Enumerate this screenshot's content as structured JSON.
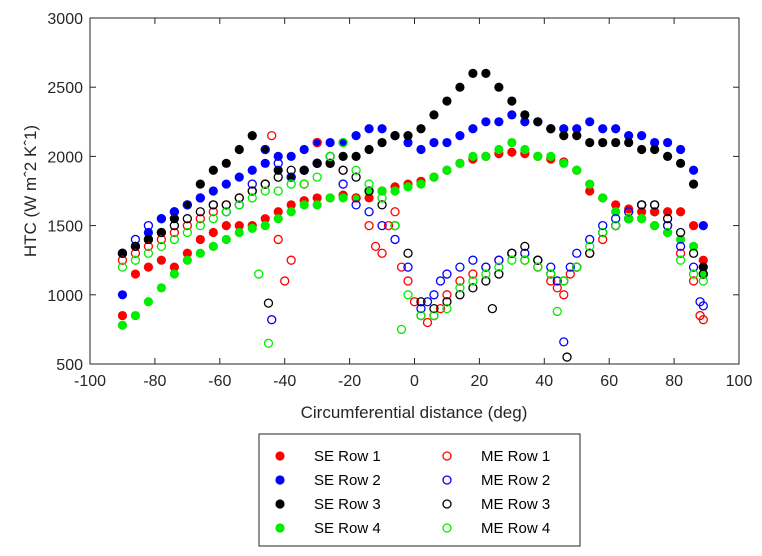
{
  "chart_data": {
    "type": "scatter",
    "title": "",
    "xlabel": "Circumferential distance (deg)",
    "ylabel": "HTC (W m^-2 K^-1)",
    "ylabel_display": "HTC (W mˆ2 Kˆ1)",
    "xlim": [
      -100,
      100
    ],
    "ylim": [
      500,
      3000
    ],
    "x_ticks": [
      -100,
      -80,
      -60,
      -40,
      -20,
      0,
      20,
      40,
      60,
      80,
      100
    ],
    "y_ticks": [
      500,
      1000,
      1500,
      2000,
      2500,
      3000
    ],
    "grid": false,
    "legend_position": "bottom-center",
    "series": [
      {
        "name": "SE Row 1",
        "color": "#ff0000",
        "marker": "filled-circle",
        "x": [
          -90,
          -86,
          -82,
          -78,
          -74,
          -70,
          -66,
          -62,
          -58,
          -54,
          -50,
          -46,
          -42,
          -38,
          -34,
          -30,
          -26,
          -22,
          -18,
          -14,
          -10,
          -6,
          -2,
          2,
          6,
          10,
          14,
          18,
          22,
          26,
          30,
          34,
          38,
          42,
          46,
          50,
          54,
          58,
          62,
          66,
          70,
          74,
          78,
          82,
          86,
          89
        ],
        "y": [
          850,
          1150,
          1200,
          1250,
          1200,
          1300,
          1400,
          1450,
          1500,
          1500,
          1500,
          1550,
          1600,
          1650,
          1680,
          1700,
          1700,
          1720,
          1700,
          1700,
          1750,
          1780,
          1800,
          1820,
          1850,
          1900,
          1950,
          1980,
          2000,
          2020,
          2030,
          2020,
          2000,
          1980,
          1960,
          1900,
          1750,
          1700,
          1650,
          1620,
          1600,
          1600,
          1600,
          1600,
          1500,
          1250
        ]
      },
      {
        "name": "SE Row 2",
        "color": "#0000ff",
        "marker": "filled-circle",
        "x": [
          -90,
          -86,
          -82,
          -78,
          -74,
          -70,
          -66,
          -62,
          -58,
          -54,
          -50,
          -46,
          -42,
          -38,
          -34,
          -30,
          -26,
          -22,
          -18,
          -14,
          -10,
          -6,
          -2,
          2,
          6,
          10,
          14,
          18,
          22,
          26,
          30,
          34,
          38,
          42,
          46,
          50,
          54,
          58,
          62,
          66,
          70,
          74,
          78,
          82,
          86,
          89
        ],
        "y": [
          1000,
          1350,
          1450,
          1550,
          1600,
          1650,
          1700,
          1750,
          1800,
          1850,
          1900,
          1950,
          2000,
          2000,
          2050,
          2100,
          2100,
          2100,
          2150,
          2200,
          2200,
          2150,
          2100,
          2050,
          2100,
          2100,
          2150,
          2200,
          2250,
          2250,
          2300,
          2250,
          2250,
          2200,
          2200,
          2200,
          2250,
          2200,
          2200,
          2150,
          2150,
          2100,
          2100,
          2050,
          1900,
          1500
        ]
      },
      {
        "name": "SE Row 3",
        "color": "#000000",
        "marker": "filled-circle",
        "x": [
          -90,
          -86,
          -82,
          -78,
          -74,
          -70,
          -66,
          -62,
          -58,
          -54,
          -50,
          -46,
          -42,
          -38,
          -34,
          -30,
          -26,
          -22,
          -18,
          -14,
          -10,
          -6,
          -2,
          2,
          6,
          10,
          14,
          18,
          22,
          26,
          30,
          34,
          38,
          42,
          46,
          50,
          54,
          58,
          62,
          66,
          70,
          74,
          78,
          82,
          86,
          89
        ],
        "y": [
          1300,
          1350,
          1400,
          1450,
          1550,
          1650,
          1800,
          1900,
          1950,
          2050,
          2150,
          2050,
          1900,
          1850,
          1900,
          1950,
          1950,
          2000,
          2000,
          2050,
          2100,
          2150,
          2150,
          2200,
          2300,
          2400,
          2500,
          2600,
          2600,
          2500,
          2400,
          2300,
          2250,
          2200,
          2150,
          2150,
          2100,
          2100,
          2100,
          2100,
          2050,
          2050,
          2000,
          1950,
          1800,
          1200
        ]
      },
      {
        "name": "SE Row 4",
        "color": "#00ee00",
        "marker": "filled-circle",
        "x": [
          -90,
          -86,
          -82,
          -78,
          -74,
          -70,
          -66,
          -62,
          -58,
          -54,
          -50,
          -46,
          -42,
          -38,
          -34,
          -30,
          -26,
          -22,
          -18,
          -14,
          -10,
          -6,
          -2,
          2,
          6,
          10,
          14,
          18,
          22,
          26,
          30,
          34,
          38,
          42,
          46,
          50,
          54,
          58,
          62,
          66,
          70,
          74,
          78,
          82,
          86,
          89
        ],
        "y": [
          780,
          850,
          950,
          1050,
          1150,
          1250,
          1300,
          1350,
          1400,
          1450,
          1480,
          1500,
          1550,
          1600,
          1650,
          1650,
          1700,
          1700,
          1700,
          1750,
          1750,
          1750,
          1780,
          1800,
          1850,
          1900,
          1950,
          2000,
          2000,
          2050,
          2100,
          2050,
          2000,
          2000,
          1950,
          1900,
          1800,
          1700,
          1600,
          1550,
          1550,
          1500,
          1450,
          1400,
          1350,
          1150
        ]
      },
      {
        "name": "ME Row 1",
        "color": "#ff0000",
        "marker": "open-circle",
        "x": [
          -90,
          -86,
          -82,
          -78,
          -74,
          -70,
          -66,
          -62,
          -58,
          -54,
          -50,
          -46,
          -44,
          -42,
          -40,
          -38,
          -34,
          -30,
          -26,
          -22,
          -18,
          -14,
          -12,
          -10,
          -8,
          -6,
          -4,
          -2,
          0,
          2,
          4,
          6,
          8,
          10,
          14,
          18,
          22,
          26,
          30,
          34,
          38,
          42,
          44,
          46,
          48,
          50,
          54,
          58,
          62,
          66,
          70,
          74,
          78,
          82,
          86,
          88,
          89
        ],
        "y": [
          1250,
          1300,
          1350,
          1400,
          1450,
          1500,
          1550,
          1600,
          1650,
          1700,
          1750,
          1800,
          2150,
          1400,
          1100,
          1250,
          1800,
          2100,
          2000,
          1900,
          1700,
          1500,
          1350,
          1300,
          1500,
          1600,
          1200,
          1100,
          950,
          850,
          800,
          850,
          900,
          1000,
          1100,
          1150,
          1200,
          1250,
          1300,
          1250,
          1200,
          1100,
          1050,
          1000,
          1150,
          1200,
          1300,
          1400,
          1500,
          1600,
          1650,
          1600,
          1500,
          1300,
          1100,
          850,
          820
        ]
      },
      {
        "name": "ME Row 2",
        "color": "#0000ff",
        "marker": "open-circle",
        "x": [
          -90,
          -86,
          -82,
          -78,
          -74,
          -70,
          -66,
          -62,
          -58,
          -54,
          -50,
          -46,
          -44,
          -42,
          -38,
          -34,
          -30,
          -26,
          -22,
          -18,
          -14,
          -10,
          -6,
          -2,
          2,
          4,
          6,
          8,
          10,
          14,
          18,
          22,
          26,
          30,
          34,
          38,
          42,
          44,
          46,
          48,
          50,
          54,
          58,
          62,
          66,
          70,
          74,
          78,
          82,
          86,
          88,
          89
        ],
        "y": [
          1300,
          1400,
          1500,
          1550,
          1600,
          1650,
          1700,
          1650,
          1600,
          1650,
          1800,
          2050,
          820,
          1950,
          1850,
          1900,
          1950,
          2000,
          1800,
          1650,
          1600,
          1500,
          1400,
          1200,
          900,
          950,
          1000,
          1100,
          1150,
          1200,
          1250,
          1200,
          1250,
          1300,
          1300,
          1250,
          1200,
          1100,
          660,
          1200,
          1300,
          1400,
          1500,
          1550,
          1600,
          1650,
          1650,
          1500,
          1350,
          1200,
          950,
          920
        ]
      },
      {
        "name": "ME Row 3",
        "color": "#000000",
        "marker": "open-circle",
        "x": [
          -90,
          -86,
          -82,
          -78,
          -74,
          -70,
          -66,
          -62,
          -58,
          -54,
          -50,
          -46,
          -45,
          -42,
          -38,
          -34,
          -30,
          -26,
          -22,
          -18,
          -14,
          -10,
          -6,
          -2,
          2,
          6,
          10,
          14,
          18,
          22,
          24,
          26,
          30,
          34,
          38,
          42,
          46,
          47,
          50,
          54,
          58,
          62,
          66,
          70,
          74,
          78,
          82,
          86,
          89
        ],
        "y": [
          1300,
          1350,
          1400,
          1450,
          1500,
          1550,
          1600,
          1650,
          1650,
          1700,
          1750,
          1800,
          940,
          1850,
          1900,
          1900,
          1950,
          1950,
          1900,
          1850,
          1750,
          1650,
          1500,
          1300,
          950,
          900,
          950,
          1000,
          1050,
          1100,
          900,
          1150,
          1300,
          1350,
          1250,
          1150,
          1100,
          550,
          1200,
          1300,
          1450,
          1500,
          1550,
          1650,
          1650,
          1550,
          1450,
          1300,
          1150
        ]
      },
      {
        "name": "ME Row 4",
        "color": "#00ee00",
        "marker": "open-circle",
        "x": [
          -90,
          -86,
          -82,
          -78,
          -74,
          -70,
          -66,
          -62,
          -58,
          -54,
          -50,
          -48,
          -46,
          -45,
          -42,
          -38,
          -34,
          -30,
          -26,
          -22,
          -18,
          -14,
          -10,
          -6,
          -4,
          -2,
          2,
          6,
          10,
          14,
          18,
          22,
          26,
          30,
          34,
          38,
          42,
          44,
          46,
          50,
          54,
          58,
          62,
          66,
          70,
          74,
          78,
          82,
          86,
          89
        ],
        "y": [
          1200,
          1250,
          1300,
          1350,
          1400,
          1450,
          1500,
          1550,
          1600,
          1650,
          1700,
          1150,
          1750,
          650,
          1750,
          1800,
          1800,
          1850,
          2000,
          2100,
          1900,
          1800,
          1700,
          1500,
          750,
          1000,
          850,
          850,
          900,
          1050,
          1100,
          1150,
          1200,
          1250,
          1250,
          1200,
          1150,
          880,
          1100,
          1200,
          1350,
          1450,
          1500,
          1550,
          1550,
          1500,
          1450,
          1250,
          1150,
          1100
        ]
      }
    ]
  }
}
